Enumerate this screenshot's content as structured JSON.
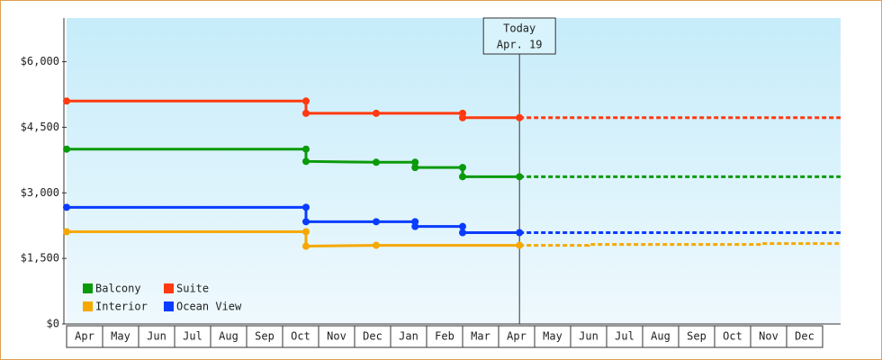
{
  "chart_data": {
    "type": "step-line",
    "categories": [
      "Apr",
      "May",
      "Jun",
      "Jul",
      "Aug",
      "Sep",
      "Oct",
      "Nov",
      "Dec",
      "Jan",
      "Feb",
      "Mar",
      "Apr",
      "May",
      "Jun",
      "Jul",
      "Aug",
      "Sep",
      "Oct",
      "Nov",
      "Dec"
    ],
    "xlim": [
      0,
      21.5
    ],
    "ylim": [
      0,
      7000
    ],
    "yticks": [
      {
        "value": 0,
        "label": "$0"
      },
      {
        "value": 1500,
        "label": "$1,500"
      },
      {
        "value": 3000,
        "label": "$3,000"
      },
      {
        "value": 4500,
        "label": "$4,500"
      },
      {
        "value": 6000,
        "label": "$6,000"
      }
    ],
    "annotation": {
      "x": 12.58,
      "lines": [
        "Today",
        "Apr. 19"
      ]
    },
    "series": [
      {
        "name": "Balcony",
        "color": "#0a9a0a",
        "x": [
          0,
          6.65,
          6.65,
          8.6,
          9.68,
          9.68,
          11,
          11,
          12.58
        ],
        "values": [
          4000,
          4000,
          3720,
          3700,
          3700,
          3580,
          3580,
          3370,
          3370
        ],
        "forecast": {
          "x": [
            12.58,
            21.5
          ],
          "values": [
            3370,
            3370
          ]
        }
      },
      {
        "name": "Suite",
        "color": "#ff3a10",
        "x": [
          0,
          6.65,
          6.65,
          8.6,
          11,
          11,
          12.58
        ],
        "values": [
          5100,
          5100,
          4820,
          4820,
          4820,
          4720,
          4720
        ],
        "forecast": {
          "x": [
            12.58,
            21.5
          ],
          "values": [
            4720,
            4720
          ]
        }
      },
      {
        "name": "Interior",
        "color": "#f5a800",
        "x": [
          0,
          6.65,
          6.65,
          8.6,
          12.58
        ],
        "values": [
          2110,
          2110,
          1780,
          1800,
          1800
        ],
        "forecast": {
          "x": [
            12.58,
            14.5,
            14.5,
            19.3,
            19.3,
            21.5
          ],
          "values": [
            1800,
            1800,
            1820,
            1820,
            1840,
            1840
          ]
        }
      },
      {
        "name": "Ocean View",
        "color": "#0a3cff",
        "x": [
          0,
          6.65,
          6.65,
          8.6,
          9.68,
          9.68,
          11,
          11,
          12.58
        ],
        "values": [
          2670,
          2670,
          2340,
          2340,
          2340,
          2230,
          2230,
          2090,
          2090
        ],
        "forecast": {
          "x": [
            12.58,
            21.5
          ],
          "values": [
            2090,
            2090
          ]
        }
      }
    ]
  }
}
